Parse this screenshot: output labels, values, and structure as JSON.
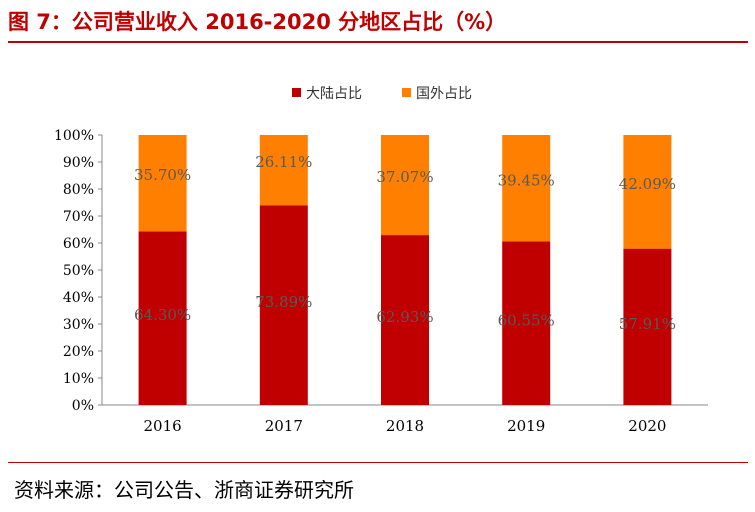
{
  "title": "图 7：公司营业收入 2016-2020 分地区占比（%）",
  "source": "资料来源：公司公告、浙商证券研究所",
  "chart_data": {
    "type": "bar",
    "stacked": true,
    "categories": [
      "2016",
      "2017",
      "2018",
      "2019",
      "2020"
    ],
    "series": [
      {
        "name": "大陆占比",
        "color": "#c00000",
        "values": [
          64.3,
          73.89,
          62.93,
          60.55,
          57.91
        ]
      },
      {
        "name": "国外占比",
        "color": "#ff8000",
        "values": [
          35.7,
          26.11,
          37.07,
          39.45,
          42.09
        ]
      }
    ],
    "ylim": [
      0,
      100
    ],
    "yticks": [
      "0%",
      "10%",
      "20%",
      "30%",
      "40%",
      "50%",
      "60%",
      "70%",
      "80%",
      "90%",
      "100%"
    ],
    "legend": "top",
    "grid": false
  }
}
